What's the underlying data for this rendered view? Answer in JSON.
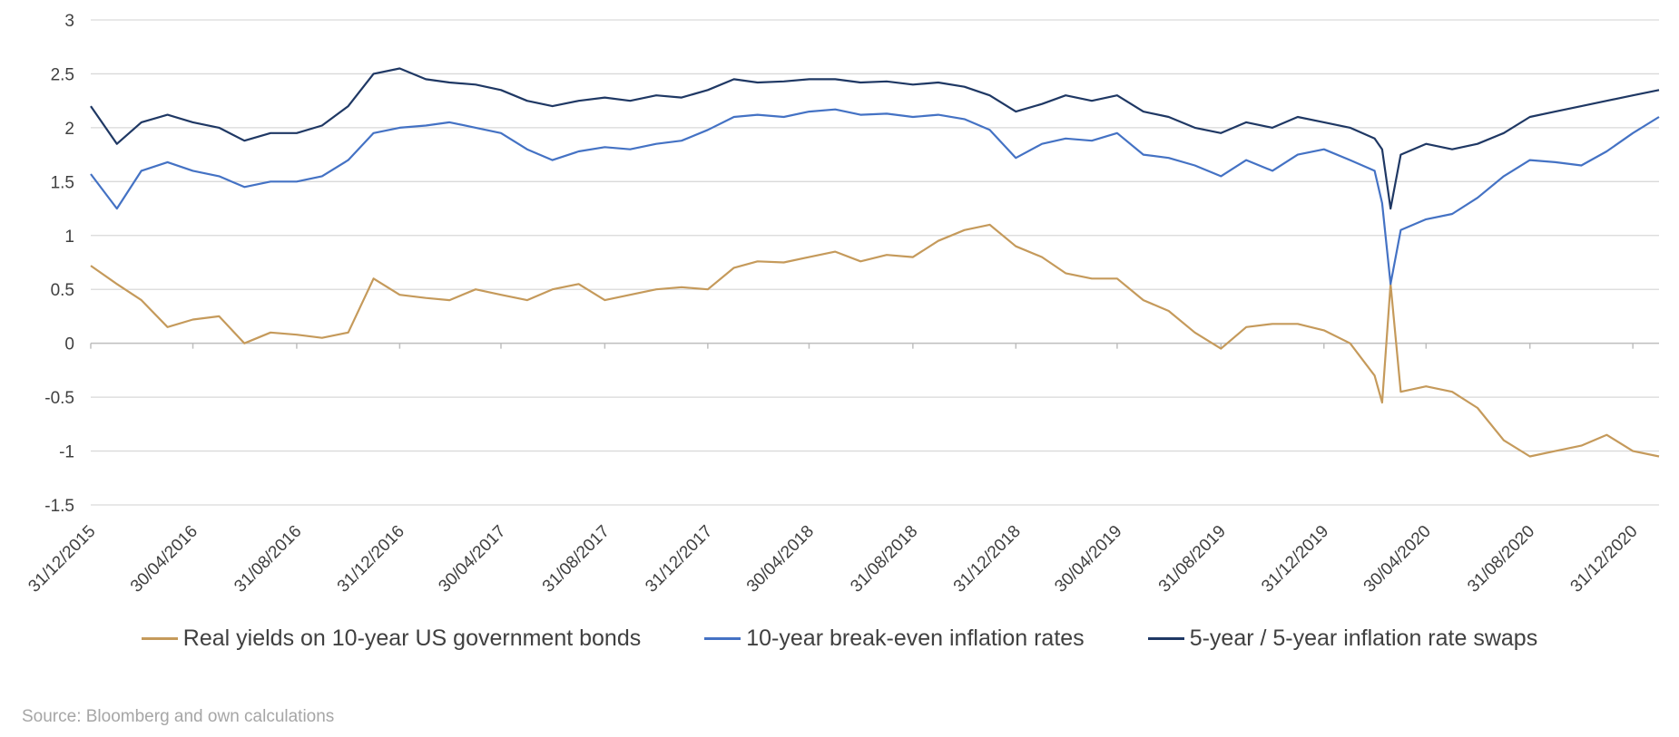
{
  "chart_data": {
    "type": "line",
    "title": "",
    "xlabel": "",
    "ylabel": "",
    "ylim": [
      -1.5,
      3
    ],
    "y_ticks": [
      "3",
      "2.5",
      "2",
      "1.5",
      "1",
      "0.5",
      "0",
      "-0.5",
      "-1",
      "-1.5"
    ],
    "x_ticks": [
      "31/12/2015",
      "30/04/2016",
      "31/08/2016",
      "31/12/2016",
      "30/04/2017",
      "31/08/2017",
      "31/12/2017",
      "30/04/2018",
      "31/08/2018",
      "31/12/2018",
      "30/04/2019",
      "31/08/2019",
      "31/12/2019",
      "30/04/2020",
      "31/08/2020",
      "31/12/2020"
    ],
    "x_range": [
      "31/12/2015",
      "31/01/2021"
    ],
    "grid": true,
    "legend_position": "bottom",
    "series": [
      {
        "name": "Real yields on 10-year US government bonds",
        "color": "#C59A5B",
        "x": [
          "31/12/2015",
          "31/01/2016",
          "29/02/2016",
          "31/03/2016",
          "30/04/2016",
          "31/05/2016",
          "30/06/2016",
          "31/07/2016",
          "31/08/2016",
          "30/09/2016",
          "31/10/2016",
          "30/11/2016",
          "31/12/2016",
          "31/01/2017",
          "28/02/2017",
          "31/03/2017",
          "30/04/2017",
          "31/05/2017",
          "30/06/2017",
          "31/07/2017",
          "31/08/2017",
          "30/09/2017",
          "31/10/2017",
          "30/11/2017",
          "31/12/2017",
          "31/01/2018",
          "28/02/2018",
          "31/03/2018",
          "30/04/2018",
          "31/05/2018",
          "30/06/2018",
          "31/07/2018",
          "31/08/2018",
          "30/09/2018",
          "31/10/2018",
          "30/11/2018",
          "31/12/2018",
          "31/01/2019",
          "28/02/2019",
          "31/03/2019",
          "30/04/2019",
          "31/05/2019",
          "30/06/2019",
          "31/07/2019",
          "31/08/2019",
          "30/09/2019",
          "31/10/2019",
          "30/11/2019",
          "31/12/2019",
          "31/01/2020",
          "29/02/2020",
          "09/03/2020",
          "19/03/2020",
          "31/03/2020",
          "30/04/2020",
          "31/05/2020",
          "30/06/2020",
          "31/07/2020",
          "31/08/2020",
          "30/09/2020",
          "31/10/2020",
          "30/11/2020",
          "31/12/2020",
          "31/01/2021"
        ],
        "values": [
          0.72,
          0.55,
          0.4,
          0.15,
          0.22,
          0.25,
          0.0,
          0.1,
          0.08,
          0.05,
          0.1,
          0.6,
          0.45,
          0.42,
          0.4,
          0.5,
          0.45,
          0.4,
          0.5,
          0.55,
          0.4,
          0.45,
          0.5,
          0.52,
          0.5,
          0.7,
          0.76,
          0.75,
          0.8,
          0.85,
          0.76,
          0.82,
          0.8,
          0.95,
          1.05,
          1.1,
          0.9,
          0.8,
          0.65,
          0.6,
          0.6,
          0.4,
          0.3,
          0.1,
          -0.05,
          0.15,
          0.18,
          0.18,
          0.12,
          0.0,
          -0.3,
          -0.55,
          0.55,
          -0.45,
          -0.4,
          -0.45,
          -0.6,
          -0.9,
          -1.05,
          -1.0,
          -0.95,
          -0.85,
          -1.0,
          -1.05
        ]
      },
      {
        "name": "10-year break-even inflation rates",
        "color": "#4472C4",
        "x": [
          "31/12/2015",
          "31/01/2016",
          "29/02/2016",
          "31/03/2016",
          "30/04/2016",
          "31/05/2016",
          "30/06/2016",
          "31/07/2016",
          "31/08/2016",
          "30/09/2016",
          "31/10/2016",
          "30/11/2016",
          "31/12/2016",
          "31/01/2017",
          "28/02/2017",
          "31/03/2017",
          "30/04/2017",
          "31/05/2017",
          "30/06/2017",
          "31/07/2017",
          "31/08/2017",
          "30/09/2017",
          "31/10/2017",
          "30/11/2017",
          "31/12/2017",
          "31/01/2018",
          "28/02/2018",
          "31/03/2018",
          "30/04/2018",
          "31/05/2018",
          "30/06/2018",
          "31/07/2018",
          "31/08/2018",
          "30/09/2018",
          "31/10/2018",
          "30/11/2018",
          "31/12/2018",
          "31/01/2019",
          "28/02/2019",
          "31/03/2019",
          "30/04/2019",
          "31/05/2019",
          "30/06/2019",
          "31/07/2019",
          "31/08/2019",
          "30/09/2019",
          "31/10/2019",
          "30/11/2019",
          "31/12/2019",
          "31/01/2020",
          "29/02/2020",
          "09/03/2020",
          "19/03/2020",
          "31/03/2020",
          "30/04/2020",
          "31/05/2020",
          "30/06/2020",
          "31/07/2020",
          "31/08/2020",
          "30/09/2020",
          "31/10/2020",
          "30/11/2020",
          "31/12/2020",
          "31/01/2021"
        ],
        "values": [
          1.57,
          1.25,
          1.6,
          1.68,
          1.6,
          1.55,
          1.45,
          1.5,
          1.5,
          1.55,
          1.7,
          1.95,
          2.0,
          2.02,
          2.05,
          2.0,
          1.95,
          1.8,
          1.7,
          1.78,
          1.82,
          1.8,
          1.85,
          1.88,
          1.98,
          2.1,
          2.12,
          2.1,
          2.15,
          2.17,
          2.12,
          2.13,
          2.1,
          2.12,
          2.08,
          1.98,
          1.72,
          1.85,
          1.9,
          1.88,
          1.95,
          1.75,
          1.72,
          1.65,
          1.55,
          1.7,
          1.6,
          1.75,
          1.8,
          1.7,
          1.6,
          1.3,
          0.55,
          1.05,
          1.15,
          1.2,
          1.35,
          1.55,
          1.7,
          1.68,
          1.65,
          1.78,
          1.95,
          2.1
        ]
      },
      {
        "name": "5-year / 5-year inflation rate swaps",
        "color": "#1F3864",
        "x": [
          "31/12/2015",
          "31/01/2016",
          "29/02/2016",
          "31/03/2016",
          "30/04/2016",
          "31/05/2016",
          "30/06/2016",
          "31/07/2016",
          "31/08/2016",
          "30/09/2016",
          "31/10/2016",
          "30/11/2016",
          "31/12/2016",
          "31/01/2017",
          "28/02/2017",
          "31/03/2017",
          "30/04/2017",
          "31/05/2017",
          "30/06/2017",
          "31/07/2017",
          "31/08/2017",
          "30/09/2017",
          "31/10/2017",
          "30/11/2017",
          "31/12/2017",
          "31/01/2018",
          "28/02/2018",
          "31/03/2018",
          "30/04/2018",
          "31/05/2018",
          "30/06/2018",
          "31/07/2018",
          "31/08/2018",
          "30/09/2018",
          "31/10/2018",
          "30/11/2018",
          "31/12/2018",
          "31/01/2019",
          "28/02/2019",
          "31/03/2019",
          "30/04/2019",
          "31/05/2019",
          "30/06/2019",
          "31/07/2019",
          "31/08/2019",
          "30/09/2019",
          "31/10/2019",
          "30/11/2019",
          "31/12/2019",
          "31/01/2020",
          "29/02/2020",
          "09/03/2020",
          "19/03/2020",
          "31/03/2020",
          "30/04/2020",
          "31/05/2020",
          "30/06/2020",
          "31/07/2020",
          "31/08/2020",
          "30/09/2020",
          "31/10/2020",
          "30/11/2020",
          "31/12/2020",
          "31/01/2021"
        ],
        "values": [
          2.2,
          1.85,
          2.05,
          2.12,
          2.05,
          2.0,
          1.88,
          1.95,
          1.95,
          2.02,
          2.2,
          2.5,
          2.55,
          2.45,
          2.42,
          2.4,
          2.35,
          2.25,
          2.2,
          2.25,
          2.28,
          2.25,
          2.3,
          2.28,
          2.35,
          2.45,
          2.42,
          2.43,
          2.45,
          2.45,
          2.42,
          2.43,
          2.4,
          2.42,
          2.38,
          2.3,
          2.15,
          2.22,
          2.3,
          2.25,
          2.3,
          2.15,
          2.1,
          2.0,
          1.95,
          2.05,
          2.0,
          2.1,
          2.05,
          2.0,
          1.9,
          1.8,
          1.25,
          1.75,
          1.85,
          1.8,
          1.85,
          1.95,
          2.1,
          2.15,
          2.2,
          2.25,
          2.3,
          2.35
        ]
      }
    ]
  },
  "legend": {
    "items": [
      {
        "label": "Real yields on 10-year US government bonds",
        "color": "#C59A5B"
      },
      {
        "label": "10-year break-even inflation rates",
        "color": "#4472C4"
      },
      {
        "label": "5-year / 5-year inflation rate swaps",
        "color": "#1F3864"
      }
    ]
  },
  "source": "Source: Bloomberg and own calculations"
}
